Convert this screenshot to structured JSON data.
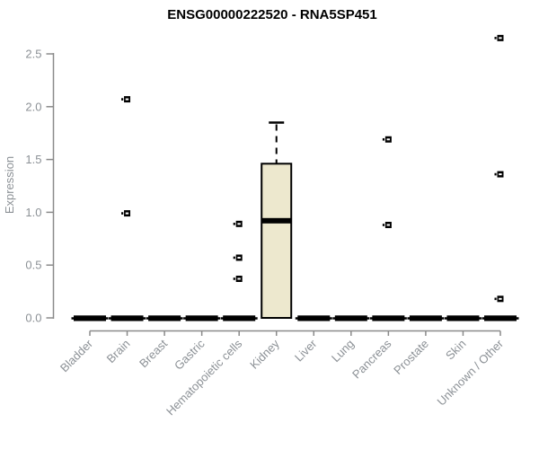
{
  "title": "ENSG00000222520 - RNA5SP451",
  "chart_data": {
    "type": "boxplot",
    "title": "ENSG00000222520 - RNA5SP451",
    "xlabel": "",
    "ylabel": "Expression",
    "ylim": [
      0,
      2.5
    ],
    "yticks": [
      "0.0",
      "0.5",
      "1.0",
      "1.5",
      "2.0",
      "2.5"
    ],
    "grid": false,
    "legend": "none",
    "x_tick_rotation_deg": 45,
    "categories": [
      "Bladder",
      "Brain",
      "Breast",
      "Gastric",
      "Hematopoietic cells",
      "Kidney",
      "Liver",
      "Lung",
      "Pancreas",
      "Prostate",
      "Skin",
      "Unknown / Other"
    ],
    "boxes": [
      {
        "category": "Bladder",
        "q1": 0,
        "median": 0,
        "q3": 0,
        "whisker_low": 0,
        "whisker_high": 0,
        "outliers": []
      },
      {
        "category": "Brain",
        "q1": 0,
        "median": 0,
        "q3": 0,
        "whisker_low": 0,
        "whisker_high": 0,
        "outliers": [
          2.07,
          0.99
        ]
      },
      {
        "category": "Breast",
        "q1": 0,
        "median": 0,
        "q3": 0,
        "whisker_low": 0,
        "whisker_high": 0,
        "outliers": []
      },
      {
        "category": "Gastric",
        "q1": 0,
        "median": 0,
        "q3": 0,
        "whisker_low": 0,
        "whisker_high": 0,
        "outliers": []
      },
      {
        "category": "Hematopoietic cells",
        "q1": 0,
        "median": 0,
        "q3": 0,
        "whisker_low": 0,
        "whisker_high": 0,
        "outliers": [
          0.89,
          0.57,
          0.37
        ]
      },
      {
        "category": "Kidney",
        "q1": 0,
        "median": 0.92,
        "q3": 1.46,
        "whisker_low": 0,
        "whisker_high": 1.85,
        "outliers": []
      },
      {
        "category": "Liver",
        "q1": 0,
        "median": 0,
        "q3": 0,
        "whisker_low": 0,
        "whisker_high": 0,
        "outliers": []
      },
      {
        "category": "Lung",
        "q1": 0,
        "median": 0,
        "q3": 0,
        "whisker_low": 0,
        "whisker_high": 0,
        "outliers": []
      },
      {
        "category": "Pancreas",
        "q1": 0,
        "median": 0,
        "q3": 0,
        "whisker_low": 0,
        "whisker_high": 0,
        "outliers": [
          1.69,
          0.88
        ]
      },
      {
        "category": "Prostate",
        "q1": 0,
        "median": 0,
        "q3": 0,
        "whisker_low": 0,
        "whisker_high": 0,
        "outliers": []
      },
      {
        "category": "Skin",
        "q1": 0,
        "median": 0,
        "q3": 0,
        "whisker_low": 0,
        "whisker_high": 0,
        "outliers": []
      },
      {
        "category": "Unknown / Other",
        "q1": 0,
        "median": 0,
        "q3": 0,
        "whisker_low": 0,
        "whisker_high": 0,
        "outliers": [
          2.65,
          1.36,
          0.18
        ]
      }
    ],
    "colors": {
      "background": "#FFFFFF",
      "box_fill": "#EDE8CE",
      "box_border": "#000000",
      "median": "#000000",
      "whisker": "#000000",
      "outlier": "#000000",
      "axis": "#8A8A8A",
      "tick_labels": "#8C9196",
      "title": "#000000"
    }
  }
}
